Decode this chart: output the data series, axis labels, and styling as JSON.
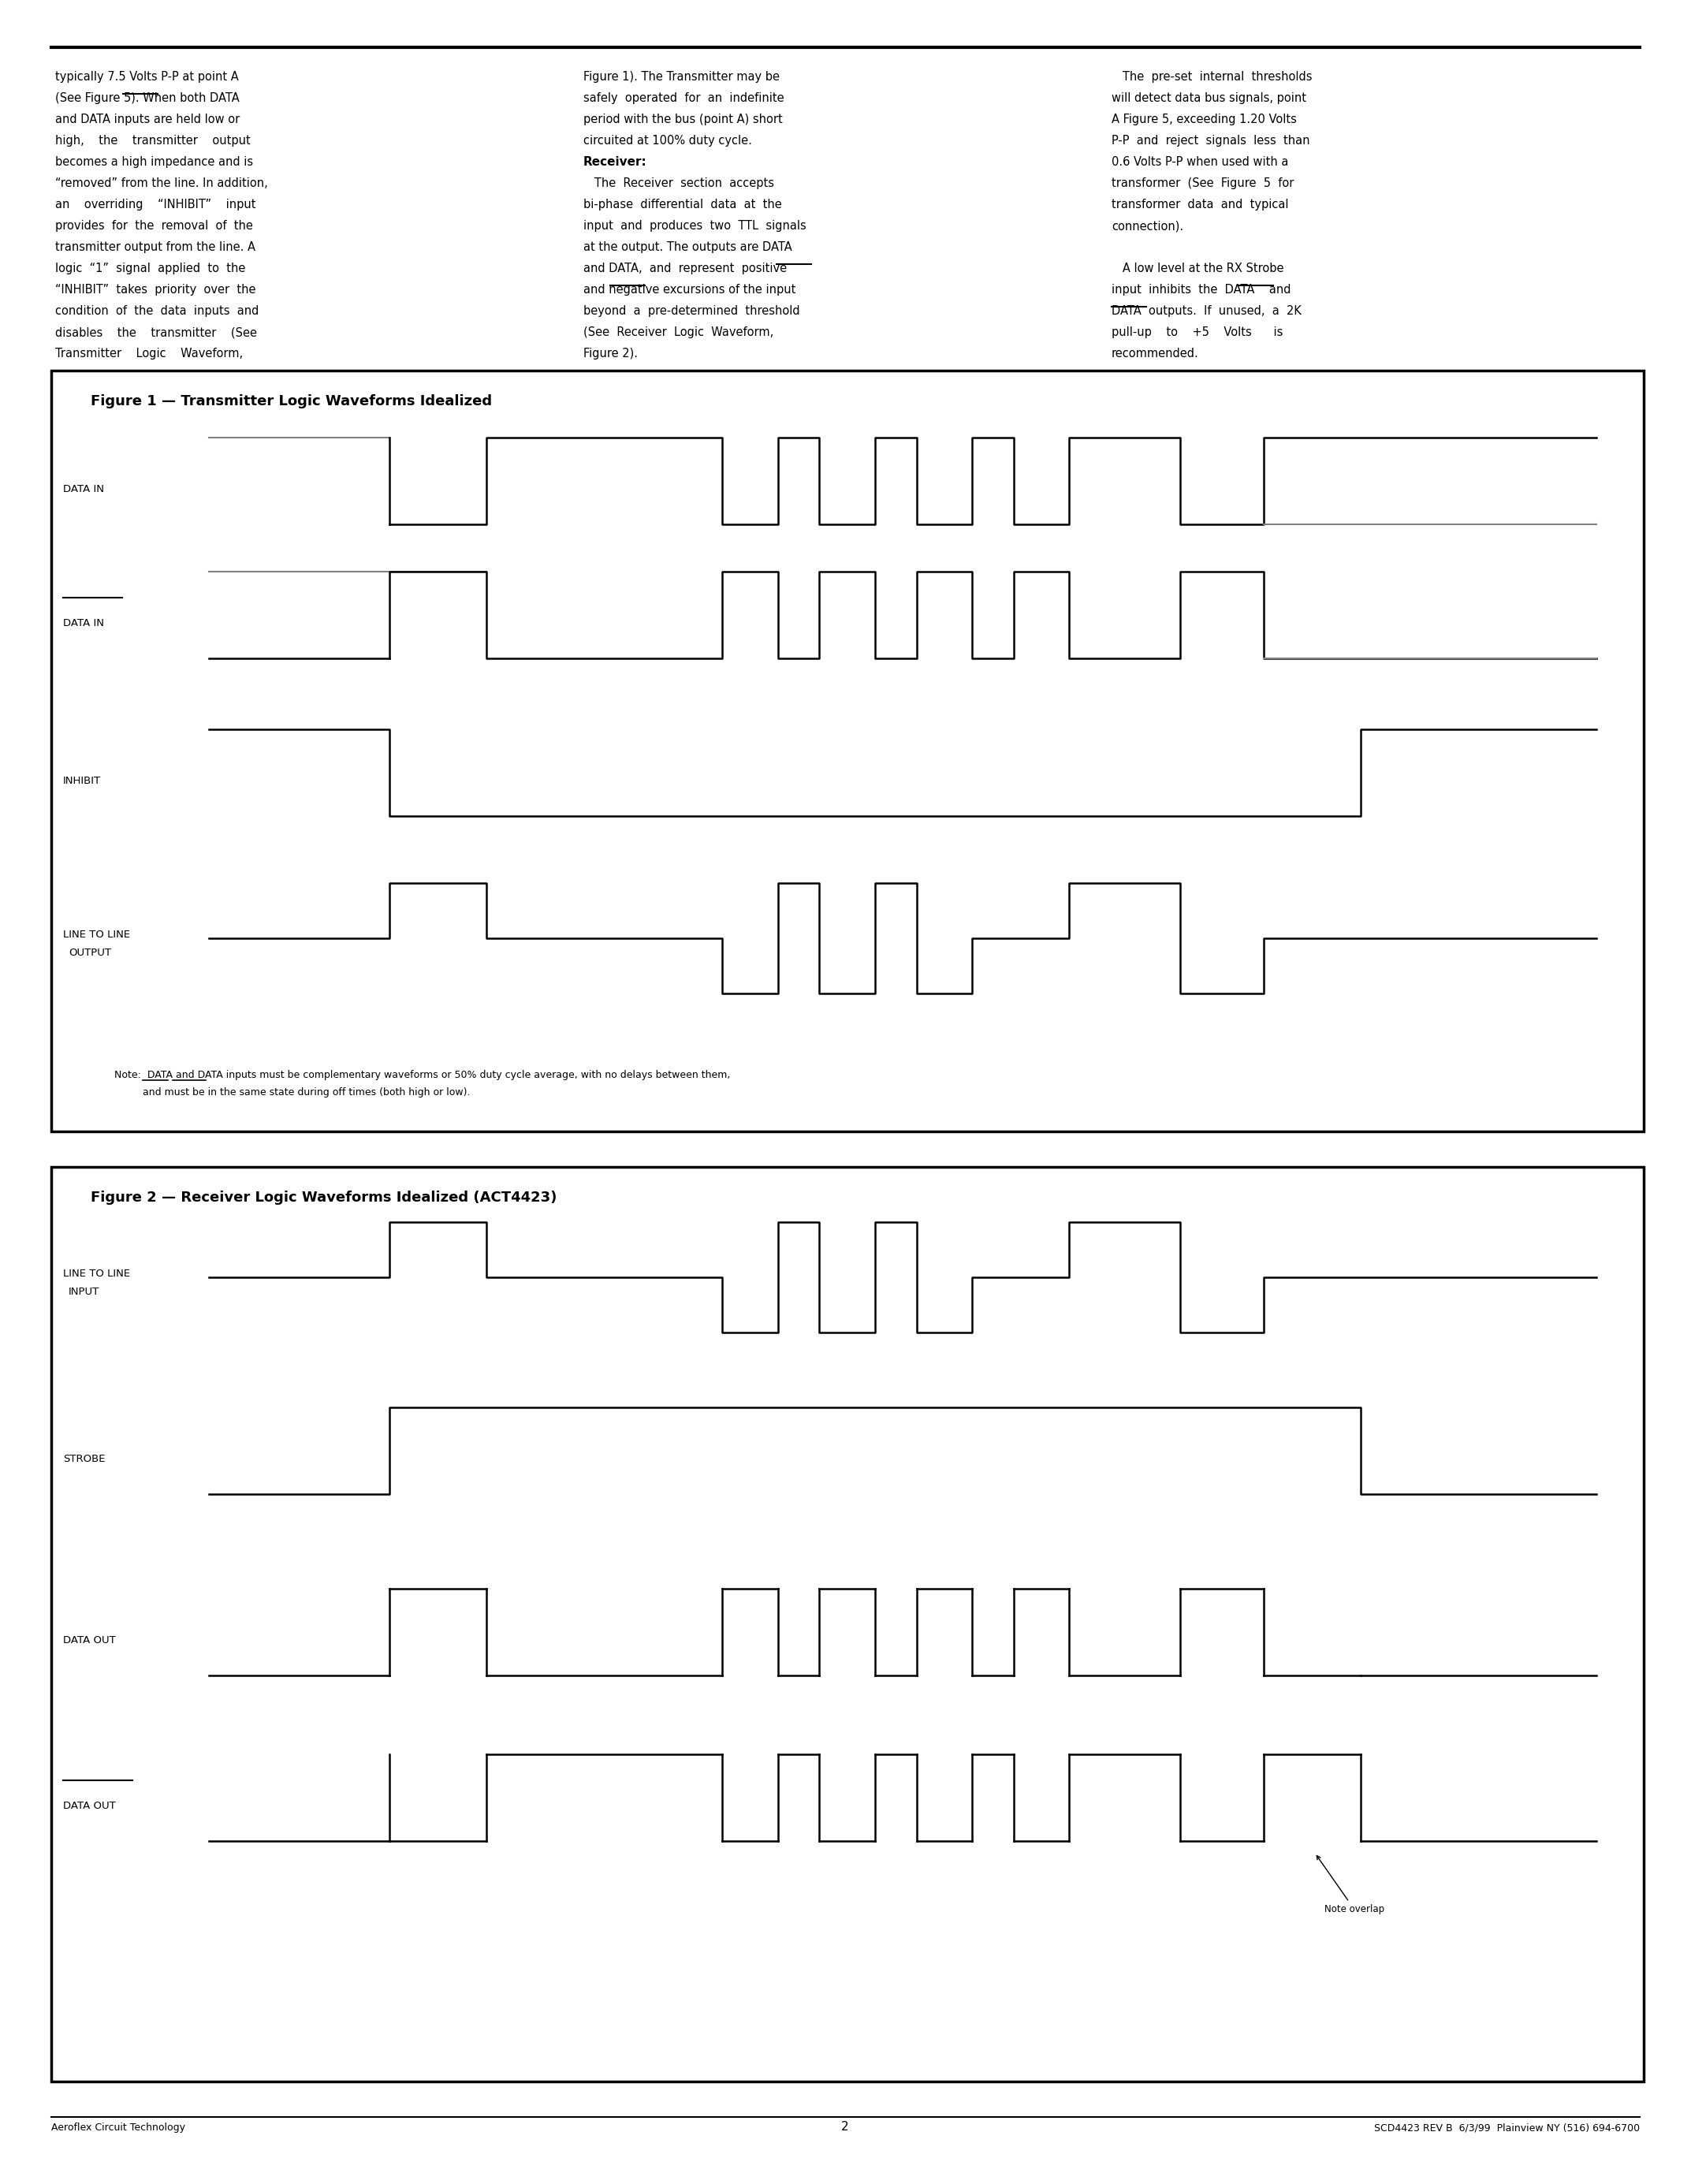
{
  "page_bg": "#ffffff",
  "border_color": "#000000",
  "text_color": "#000000",
  "fig1_title": "Figure 1 — Transmitter Logic Waveforms Idealized",
  "fig2_title": "Figure 2 — Receiver Logic Waveforms Idealized (ACT4423)",
  "footer_left": "Aeroflex Circuit Technology",
  "footer_center": "2",
  "footer_right": "SCD4423 REV B  6/3/99  Plainview NY (516) 694-6700",
  "col1_text": "typically 7.5 Volts P-P at point A (See Figure 5). When both DATA and DATA inputs are held low or high, the transmitter output becomes a high impedance and is “removed” from the line. In addition, an overriding “INHIBIT” input provides for the removal of the transmitter output from the line. A logic “1” signal applied to the “INHIBIT” takes priority over the condition of the data inputs and disables the transmitter (See Transmitter Logic Waveform,",
  "col2_text": "Figure 1). The Transmitter may be safely operated for an indefinite period with the bus (point A) short circuited at 100% duty cycle.",
  "col2_text2": "Receiver:",
  "col2_text3": "The Receiver section accepts bi-phase differential data at the input and produces two TTL signals at the output. The outputs are DATA and DATA, and represent positive and negative excursions of the input beyond a pre-determined threshold (See Receiver Logic Waveform, Figure 2).",
  "col3_text": "The pre-set internal thresholds will detect data bus signals, point A Figure 5, exceeding 1.20 Volts P-P and reject signals less than 0.6 Volts P-P when used with a transformer (See Figure 5 for transformer data and typical connection).",
  "col3_text2": "A low level at the RX Strobe input inhibits the DATA and DATA outputs. If unused, a 2K pull-up to +5 Volts is recommended.",
  "note_text": "Note:  DATA and DATA inputs must be complementary waveforms or 50% duty cycle average, with no delays between them,\n         and must be in the same state during off times (both high or low).",
  "note_overlap": "Note overlap"
}
